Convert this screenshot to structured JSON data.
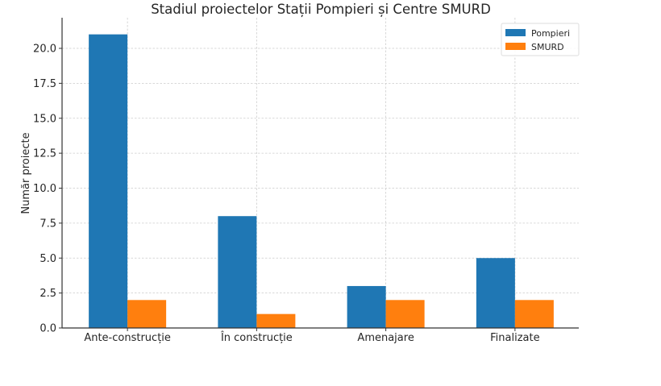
{
  "chart_data": {
    "type": "bar",
    "title": "Stadiul proiectelor Stații Pompieri și Centre SMURD",
    "xlabel": "",
    "ylabel": "Număr proiecte",
    "categories": [
      "Ante-construcție",
      "În construcție",
      "Amenajare",
      "Finalizate"
    ],
    "series": [
      {
        "name": "Pompieri",
        "color": "#1f77b4",
        "values": [
          21,
          8,
          3,
          5
        ]
      },
      {
        "name": "SMURD",
        "color": "#ff7f0e",
        "values": [
          2,
          1,
          2,
          2
        ]
      }
    ],
    "ylim": [
      0,
      22.2
    ],
    "yticks": [
      0.0,
      2.5,
      5.0,
      7.5,
      10.0,
      12.5,
      15.0,
      17.5,
      20.0
    ],
    "ytick_labels": [
      "0.0",
      "2.5",
      "5.0",
      "7.5",
      "10.0",
      "12.5",
      "15.0",
      "17.5",
      "20.0"
    ],
    "grid": true,
    "legend_position": "upper right"
  }
}
